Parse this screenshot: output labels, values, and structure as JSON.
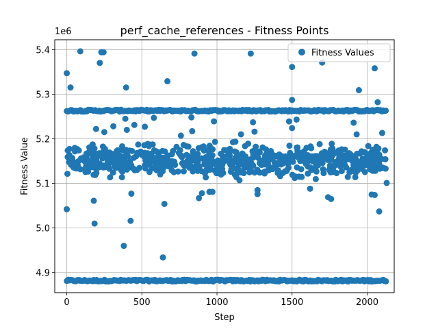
{
  "chart_data": {
    "type": "scatter",
    "title": "perf_cache_references - Fitness Points",
    "xlabel": "Step",
    "ylabel": "Fitness Value",
    "offset_label": "1e6",
    "xlim": [
      -80,
      2180
    ],
    "ylim": [
      4.855,
      5.422
    ],
    "x_ticks": [
      0,
      500,
      1000,
      1500,
      2000
    ],
    "x_tick_labels": [
      "0",
      "500",
      "1000",
      "1500",
      "2000"
    ],
    "y_ticks": [
      4.9,
      5.0,
      5.1,
      5.2,
      5.3,
      5.4
    ],
    "y_tick_labels": [
      "4.9",
      "5.0",
      "5.1",
      "5.2",
      "5.3",
      "5.4"
    ],
    "grid": true,
    "legend_position": "top-right",
    "marker_color": "#1f77b4",
    "series": [
      {
        "name": "Fitness Values",
        "bands": [
          {
            "y": 4.882,
            "x_range": [
              0,
              2130
            ],
            "description": "dense band"
          },
          {
            "y": 5.263,
            "x_range": [
              0,
              2130
            ],
            "description": "dense band"
          },
          {
            "y_range": [
              5.1,
              5.2
            ],
            "x_range": [
              0,
              2130
            ],
            "description": "dense cluster"
          }
        ],
        "points": [
          [
            0,
            5.347
          ],
          [
            0,
            5.042
          ],
          [
            25,
            5.315
          ],
          [
            90,
            5.396
          ],
          [
            230,
            5.394
          ],
          [
            245,
            5.394
          ],
          [
            220,
            5.37
          ],
          [
            850,
            5.391
          ],
          [
            1225,
            5.391
          ],
          [
            1500,
            5.361
          ],
          [
            1700,
            5.371
          ],
          [
            2050,
            5.358
          ],
          [
            670,
            5.329
          ],
          [
            395,
            5.315
          ],
          [
            1945,
            5.309
          ],
          [
            1500,
            5.287
          ],
          [
            2070,
            5.282
          ],
          [
            195,
            5.222
          ],
          [
            250,
            5.215
          ],
          [
            310,
            5.228
          ],
          [
            390,
            5.245
          ],
          [
            400,
            5.22
          ],
          [
            450,
            5.231
          ],
          [
            520,
            5.227
          ],
          [
            580,
            5.247
          ],
          [
            760,
            5.207
          ],
          [
            830,
            5.248
          ],
          [
            835,
            5.217
          ],
          [
            980,
            5.239
          ],
          [
            1160,
            5.21
          ],
          [
            1240,
            5.237
          ],
          [
            1250,
            5.216
          ],
          [
            1480,
            5.239
          ],
          [
            1500,
            5.224
          ],
          [
            1530,
            5.243
          ],
          [
            1910,
            5.236
          ],
          [
            1930,
            5.21
          ],
          [
            2100,
            5.213
          ],
          [
            180,
            5.061
          ],
          [
            185,
            5.01
          ],
          [
            380,
            4.96
          ],
          [
            425,
            5.016
          ],
          [
            430,
            5.077
          ],
          [
            640,
            4.934
          ],
          [
            650,
            5.054
          ],
          [
            880,
            5.067
          ],
          [
            900,
            5.078
          ],
          [
            950,
            5.081
          ],
          [
            970,
            5.081
          ],
          [
            1270,
            5.076
          ],
          [
            1270,
            5.085
          ],
          [
            1740,
            5.069
          ],
          [
            1760,
            5.065
          ],
          [
            2030,
            5.075
          ],
          [
            2050,
            5.074
          ],
          [
            2080,
            5.037
          ],
          [
            1620,
            5.088
          ],
          [
            2130,
            5.101
          ]
        ]
      }
    ]
  }
}
